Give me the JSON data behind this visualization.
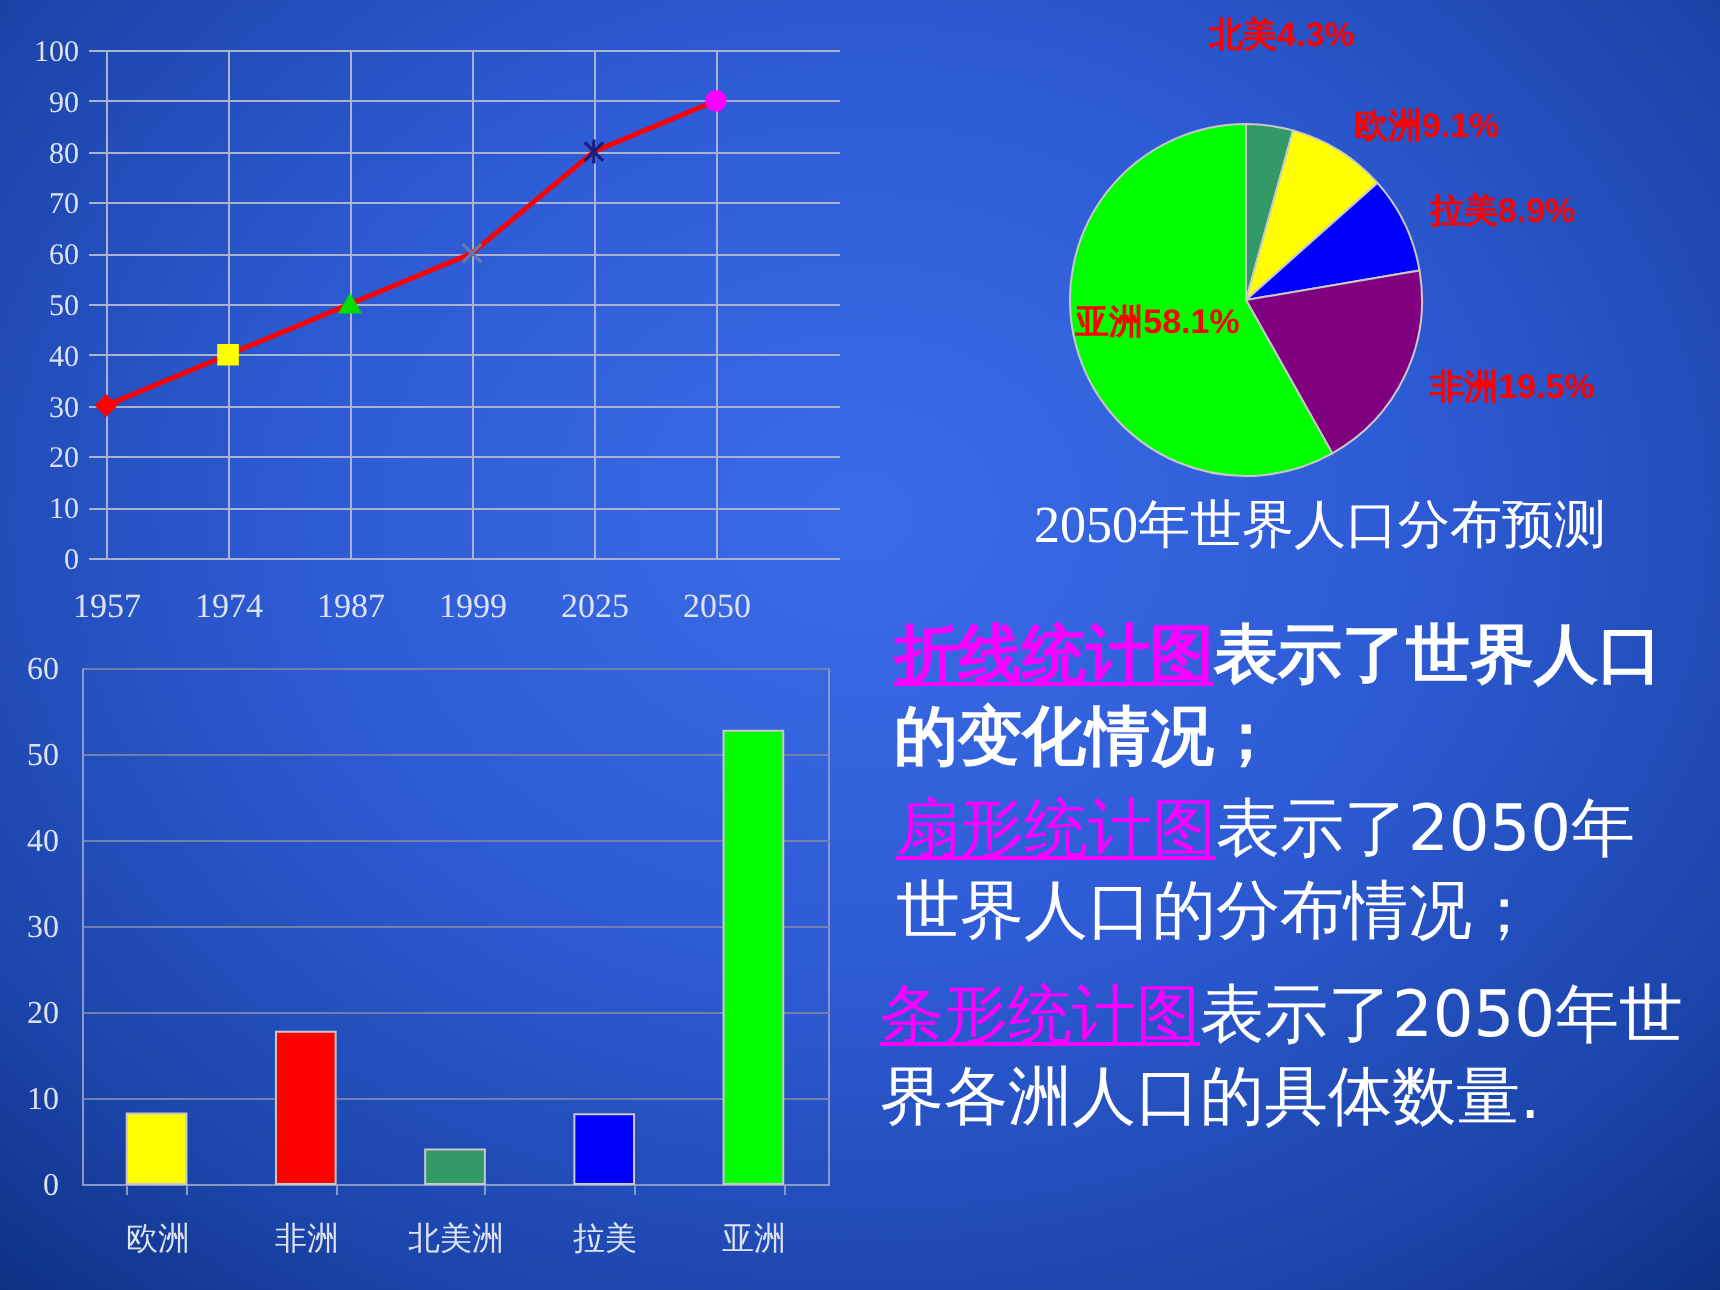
{
  "chart_data": [
    {
      "type": "line",
      "categories": [
        "1957",
        "1974",
        "1987",
        "1999",
        "2025",
        "2050"
      ],
      "series": [
        {
          "color": "#ff0000",
          "values": [
            30,
            40,
            50,
            60,
            80,
            90
          ],
          "colors": [
            "#ff0000",
            "#ffff00",
            "#00dd00",
            "#6a78a8",
            "#1c1c7a",
            "#ff00ff"
          ],
          "marker": [
            "diamond",
            "square",
            "triangle",
            "cross",
            "star",
            "circle"
          ]
        }
      ],
      "ylim": [
        0,
        100
      ],
      "yticks": [
        0,
        10,
        20,
        30,
        40,
        50,
        60,
        70,
        80,
        90,
        100
      ],
      "grid": true
    },
    {
      "type": "pie",
      "title": "2050年世界人口分布预测",
      "categories": [
        "北美",
        "欧洲",
        "拉美",
        "非洲",
        "亚洲"
      ],
      "values": [
        4.3,
        9.1,
        8.9,
        19.5,
        58.1
      ],
      "value_labels": [
        "4.3%",
        "9.1%",
        "8.9%",
        "19.5%",
        "58.1%"
      ],
      "colors": [
        "#339966",
        "#ffff00",
        "#0000ff",
        "#800080",
        "#00ff00"
      ]
    },
    {
      "type": "bar",
      "categories": [
        "欧洲",
        "非洲",
        "北美洲",
        "拉美",
        "亚洲"
      ],
      "values": [
        8.2,
        17.7,
        4.0,
        8.1,
        52.7
      ],
      "colors": [
        "#ffff00",
        "#ff0000",
        "#339966",
        "#0000ff",
        "#00ff00"
      ],
      "ylim": [
        0,
        60
      ],
      "yticks": [
        0,
        10,
        20,
        30,
        40,
        50,
        60
      ],
      "grid": "y"
    },
    {
      "type": "other",
      "annotations": [
        "折线统计图",
        "表示了世界人口",
        "的变化情况；",
        "扇形统计图",
        "表示了2050年",
        "世界人口的分布情况；",
        "条形统计图",
        "表示了2050年世",
        "界各洲人口的具体数量."
      ]
    }
  ]
}
